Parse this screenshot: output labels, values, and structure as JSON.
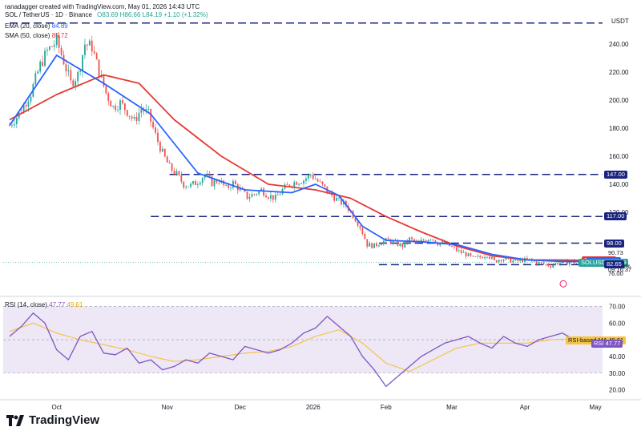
{
  "header": {
    "created_by": "ranadagger created with TradingView.com, May 01, 2026 14:43 UTC",
    "symbol_line": "SOL / TetherUS · 1D · Binance",
    "ohlc": "O83.69 H86.66 L84.19 +1.10 (+1.32%)"
  },
  "legend": {
    "ema_label": "EMA (20, close)",
    "ema_value": "84.89",
    "sma_label": "SMA (50, close)",
    "sma_value": "85.72",
    "rsi_label": "RSI (14, close)",
    "rsi_value": "47.77",
    "rsi_ma_value": "49.61"
  },
  "brand": "TradingView",
  "currency": "USDT",
  "colors": {
    "up": "#26a69a",
    "down": "#ef5350",
    "ema": "#2962ff",
    "sma": "#e53935",
    "rsi": "#7e57c2",
    "rsi_ma": "#f5c242",
    "level": "#1a237e",
    "rsi_band": "#ede7f6"
  },
  "chart_data": [
    {
      "type": "candlestick",
      "ylim": [
        60,
        260
      ],
      "yticks": [
        240.0,
        220.0,
        200.0,
        180.0,
        160.0,
        140.0,
        120.0
      ],
      "x_labels": [
        "Oct",
        "Nov",
        "Dec",
        "2026",
        "Feb",
        "Mar",
        "Apr",
        "May"
      ],
      "x_label_days": [
        20,
        67,
        98,
        129,
        160,
        188,
        219,
        249
      ],
      "last_day": 245,
      "candles_close": [
        [
          0,
          182
        ],
        [
          4,
          190
        ],
        [
          9,
          205
        ],
        [
          13,
          225
        ],
        [
          16,
          235
        ],
        [
          20,
          242
        ],
        [
          23,
          228
        ],
        [
          26,
          212
        ],
        [
          29,
          218
        ],
        [
          32,
          240
        ],
        [
          35,
          238
        ],
        [
          38,
          220
        ],
        [
          41,
          205
        ],
        [
          44,
          195
        ],
        [
          47,
          198
        ],
        [
          50,
          192
        ],
        [
          53,
          185
        ],
        [
          56,
          194
        ],
        [
          59,
          190
        ],
        [
          62,
          175
        ],
        [
          65,
          162
        ],
        [
          68,
          152
        ],
        [
          71,
          147
        ],
        [
          74,
          140
        ],
        [
          77,
          139
        ],
        [
          80,
          142
        ],
        [
          83,
          147
        ],
        [
          86,
          141
        ],
        [
          89,
          143
        ],
        [
          92,
          137
        ],
        [
          95,
          141
        ],
        [
          98,
          136
        ],
        [
          101,
          131
        ],
        [
          104,
          133
        ],
        [
          107,
          136
        ],
        [
          110,
          132
        ],
        [
          113,
          130
        ],
        [
          116,
          136
        ],
        [
          119,
          140
        ],
        [
          122,
          142
        ],
        [
          125,
          143
        ],
        [
          128,
          147
        ],
        [
          131,
          142
        ],
        [
          134,
          137
        ],
        [
          137,
          132
        ],
        [
          140,
          128
        ],
        [
          143,
          125
        ],
        [
          146,
          118
        ],
        [
          149,
          110
        ],
        [
          152,
          97
        ],
        [
          155,
          96
        ],
        [
          158,
          99
        ],
        [
          161,
          100
        ],
        [
          164,
          98
        ],
        [
          167,
          96
        ],
        [
          170,
          101
        ],
        [
          173,
          98
        ],
        [
          176,
          100
        ],
        [
          179,
          102
        ],
        [
          182,
          98
        ],
        [
          185,
          98
        ],
        [
          188,
          95
        ],
        [
          191,
          92
        ],
        [
          194,
          90
        ],
        [
          197,
          87
        ],
        [
          200,
          88
        ],
        [
          203,
          90
        ],
        [
          206,
          85
        ],
        [
          209,
          87
        ],
        [
          212,
          86
        ],
        [
          215,
          85
        ],
        [
          218,
          86
        ],
        [
          221,
          86
        ],
        [
          224,
          84
        ],
        [
          227,
          83
        ],
        [
          230,
          82
        ],
        [
          233,
          84
        ],
        [
          236,
          84
        ],
        [
          239,
          85
        ],
        [
          242,
          83
        ],
        [
          245,
          84.19
        ]
      ],
      "ema_20": [
        [
          0,
          182
        ],
        [
          20,
          232
        ],
        [
          40,
          212
        ],
        [
          60,
          190
        ],
        [
          80,
          148
        ],
        [
          100,
          136
        ],
        [
          120,
          134
        ],
        [
          130,
          140
        ],
        [
          140,
          132
        ],
        [
          150,
          110
        ],
        [
          160,
          100
        ],
        [
          175,
          99
        ],
        [
          190,
          97
        ],
        [
          205,
          90
        ],
        [
          220,
          86
        ],
        [
          235,
          85
        ],
        [
          245,
          84.89
        ]
      ],
      "sma_50": [
        [
          0,
          186
        ],
        [
          20,
          204
        ],
        [
          40,
          218
        ],
        [
          55,
          212
        ],
        [
          70,
          186
        ],
        [
          90,
          160
        ],
        [
          110,
          140
        ],
        [
          130,
          136
        ],
        [
          145,
          130
        ],
        [
          160,
          117
        ],
        [
          175,
          106
        ],
        [
          190,
          96
        ],
        [
          205,
          89
        ],
        [
          220,
          86
        ],
        [
          235,
          86
        ],
        [
          245,
          85.72
        ]
      ],
      "levels": [
        {
          "price": 255,
          "from_day": 0
        },
        {
          "price": 147,
          "from_day": 68
        },
        {
          "price": 117,
          "from_day": 60
        },
        {
          "price": 98,
          "from_day": 157
        },
        {
          "price": 82.65,
          "from_day": 157
        }
      ],
      "price_tags": [
        {
          "label": "147.00",
          "price": 147.0,
          "style": "level"
        },
        {
          "label": "117.00",
          "price": 117.0,
          "style": "level"
        },
        {
          "label": "98.00",
          "price": 98.0,
          "style": "level"
        },
        {
          "label": "90.73",
          "price": 90.73,
          "style": "plain"
        },
        {
          "label": "SMA",
          "value": "85.72",
          "price": 85.72,
          "style": "sma"
        },
        {
          "label": "EMA",
          "value": "84.89",
          "price": 84.89,
          "style": "ema"
        },
        {
          "label": "SOLUSDT",
          "value": "84.19",
          "price": 84.19,
          "style": "up"
        },
        {
          "label": "-57.33%",
          "price": 81.2,
          "style": "plain"
        },
        {
          "label": "09:16:37",
          "price": 78.6,
          "style": "plain"
        },
        {
          "label": "82.65",
          "price": 82.65,
          "style": "level"
        },
        {
          "label": "76.00",
          "price": 76.0,
          "style": "plain"
        }
      ]
    },
    {
      "type": "line",
      "name": "RSI (14, close)",
      "ylim": [
        15,
        75
      ],
      "yticks": [
        70.0,
        60.0,
        50.0,
        40.0,
        30.0,
        20.0
      ],
      "band": [
        30,
        70
      ],
      "rsi": [
        [
          0,
          52
        ],
        [
          5,
          58
        ],
        [
          10,
          66
        ],
        [
          15,
          60
        ],
        [
          20,
          44
        ],
        [
          25,
          38
        ],
        [
          30,
          52
        ],
        [
          35,
          55
        ],
        [
          40,
          42
        ],
        [
          45,
          41
        ],
        [
          50,
          45
        ],
        [
          55,
          36
        ],
        [
          60,
          38
        ],
        [
          65,
          32
        ],
        [
          70,
          34
        ],
        [
          75,
          38
        ],
        [
          80,
          36
        ],
        [
          85,
          42
        ],
        [
          90,
          40
        ],
        [
          95,
          38
        ],
        [
          100,
          46
        ],
        [
          105,
          44
        ],
        [
          110,
          42
        ],
        [
          115,
          44
        ],
        [
          120,
          48
        ],
        [
          125,
          54
        ],
        [
          130,
          57
        ],
        [
          135,
          64
        ],
        [
          140,
          58
        ],
        [
          145,
          52
        ],
        [
          150,
          40
        ],
        [
          155,
          32
        ],
        [
          160,
          22
        ],
        [
          165,
          28
        ],
        [
          170,
          34
        ],
        [
          175,
          40
        ],
        [
          180,
          44
        ],
        [
          185,
          48
        ],
        [
          190,
          50
        ],
        [
          195,
          52
        ],
        [
          200,
          48
        ],
        [
          205,
          45
        ],
        [
          210,
          52
        ],
        [
          215,
          48
        ],
        [
          220,
          46
        ],
        [
          225,
          50
        ],
        [
          230,
          52
        ],
        [
          235,
          54
        ],
        [
          240,
          50
        ],
        [
          245,
          47.77
        ]
      ],
      "rsi_ma": [
        [
          0,
          55
        ],
        [
          10,
          60
        ],
        [
          20,
          54
        ],
        [
          30,
          50
        ],
        [
          40,
          47
        ],
        [
          50,
          44
        ],
        [
          60,
          40
        ],
        [
          70,
          37
        ],
        [
          80,
          38
        ],
        [
          90,
          40
        ],
        [
          100,
          42
        ],
        [
          110,
          43
        ],
        [
          120,
          46
        ],
        [
          130,
          52
        ],
        [
          140,
          56
        ],
        [
          150,
          48
        ],
        [
          160,
          36
        ],
        [
          170,
          31
        ],
        [
          180,
          38
        ],
        [
          190,
          45
        ],
        [
          200,
          48
        ],
        [
          210,
          48
        ],
        [
          220,
          48
        ],
        [
          230,
          50
        ],
        [
          240,
          50.5
        ],
        [
          245,
          49.61
        ]
      ],
      "tags": [
        {
          "label": "RSI-based MA",
          "value": "49.61",
          "y": 49.61,
          "style": "rsima"
        },
        {
          "label": "RSI",
          "value": "47.77",
          "y": 47.77,
          "style": "rsi"
        }
      ]
    }
  ]
}
